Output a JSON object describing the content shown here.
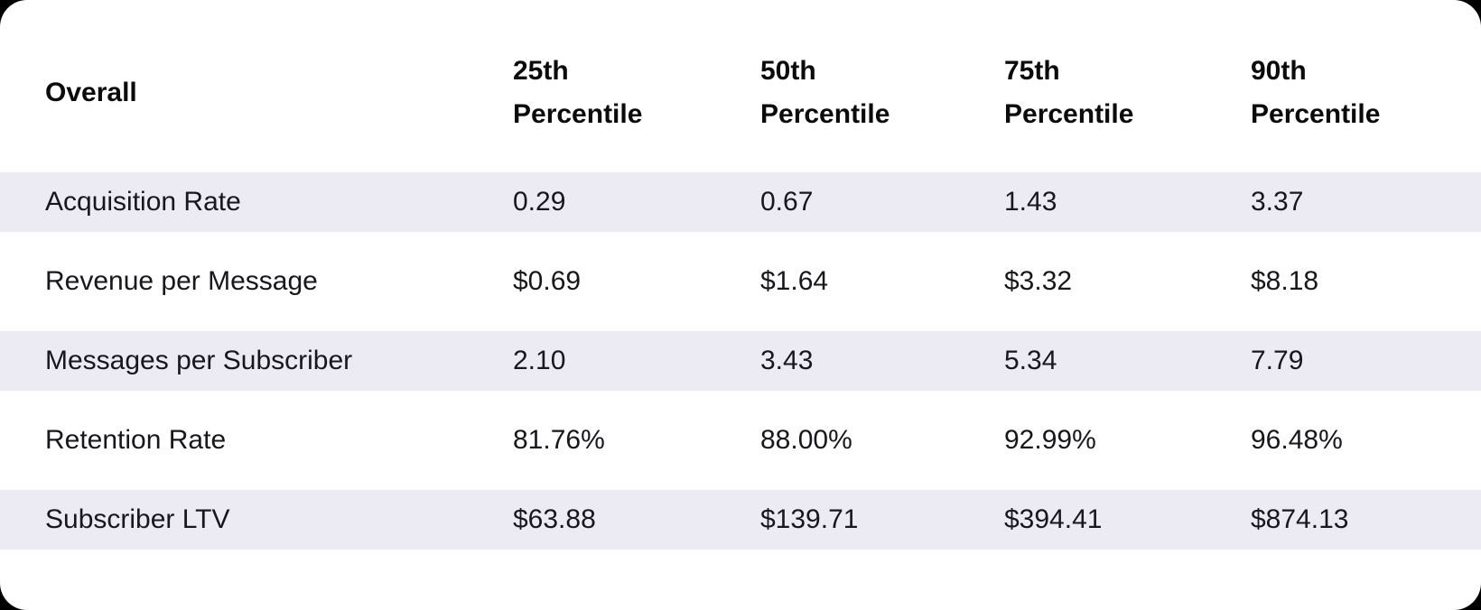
{
  "chart_data": {
    "type": "table",
    "corner_label": "Overall",
    "columns": [
      "25th Percentile",
      "50th Percentile",
      "75th Percentile",
      "90th Percentile"
    ],
    "rows": [
      {
        "metric": "Acquisition Rate",
        "values": [
          "0.29",
          "0.67",
          "1.43",
          "3.37"
        ]
      },
      {
        "metric": "Revenue per Message",
        "values": [
          "$0.69",
          "$1.64",
          "$3.32",
          "$8.18"
        ]
      },
      {
        "metric": "Messages per Subscriber",
        "values": [
          "2.10",
          "3.43",
          "5.34",
          "7.79"
        ]
      },
      {
        "metric": "Retention Rate",
        "values": [
          "81.76%",
          "88.00%",
          "92.99%",
          "96.48%"
        ]
      },
      {
        "metric": "Subscriber LTV",
        "values": [
          "$63.88",
          "$139.71",
          "$394.41",
          "$874.13"
        ]
      }
    ],
    "layout": {
      "striped_rows": "odd",
      "stripe_full_width": true,
      "header_lines": 2,
      "grid": "none",
      "legend": "none"
    }
  },
  "colors": {
    "stripe": "#ECEBF4",
    "card_background": "#FFFFFF",
    "page_background": "#000000",
    "header_text": "#0B0B0E",
    "body_text": "#17171C"
  }
}
